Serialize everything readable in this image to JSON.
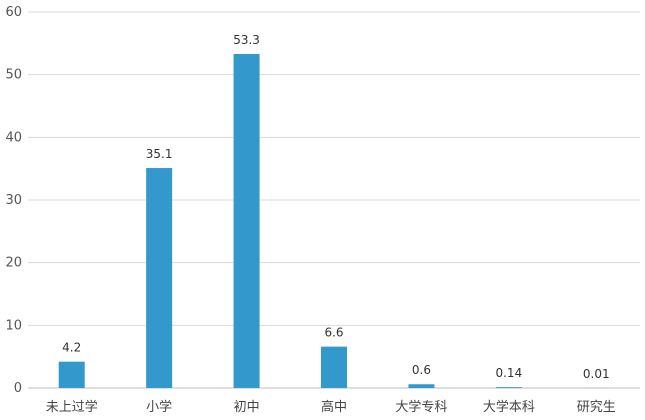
{
  "chart_data": {
    "type": "bar",
    "title": "",
    "xlabel": "",
    "ylabel": "",
    "categories": [
      "未上过学",
      "小学",
      "初中",
      "高中",
      "大学专科",
      "大学本科",
      "研究生"
    ],
    "values": [
      4.2,
      35.1,
      53.3,
      6.6,
      0.6,
      0.14,
      0.01
    ],
    "data_labels": [
      "4.2",
      "35.1",
      "53.3",
      "6.6",
      "0.6",
      "0.14",
      "0.01"
    ],
    "ylim": [
      0,
      60
    ],
    "yticks": [
      "0",
      "10",
      "20",
      "30",
      "40",
      "50",
      "60"
    ],
    "grid": true,
    "bar_color": "#3399cc",
    "grid_color": "#d9d9d9",
    "axis_color": "#bfbfbf"
  }
}
